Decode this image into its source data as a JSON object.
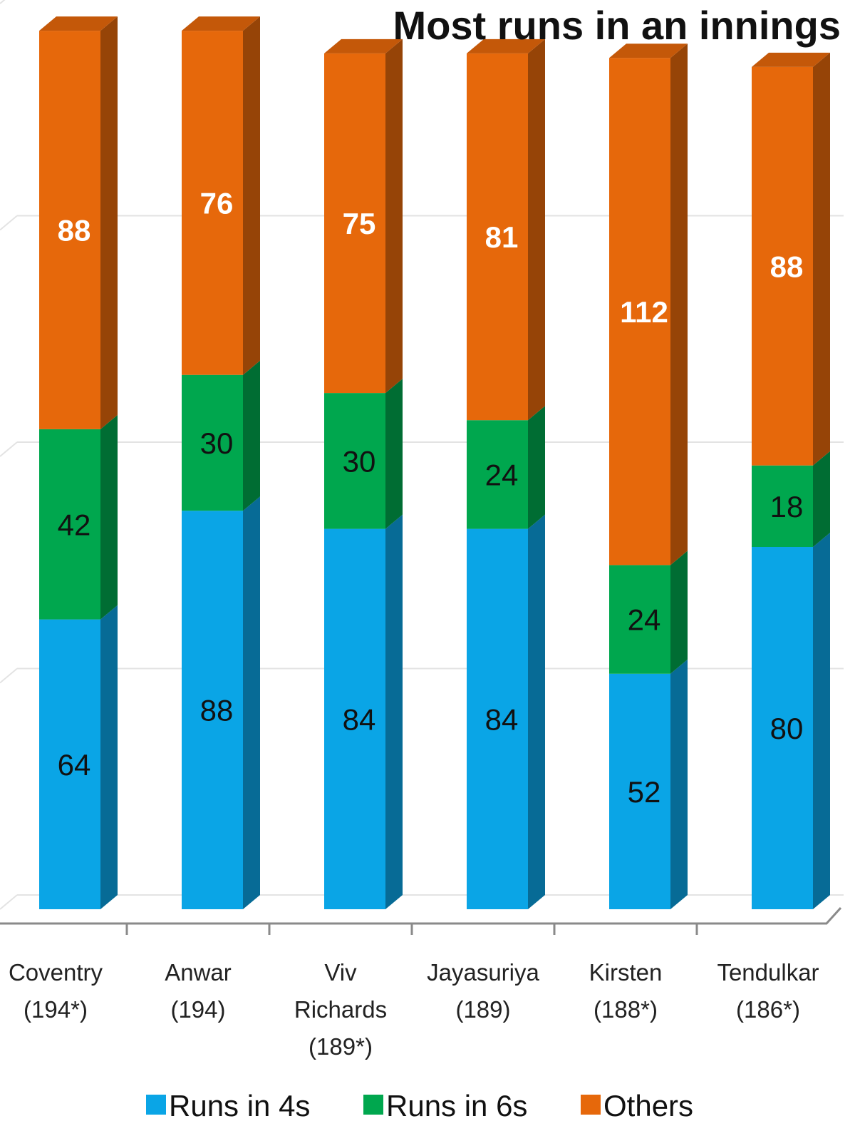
{
  "chart_data": {
    "type": "bar",
    "stacked": true,
    "style": "3d",
    "title": "Most runs in an innings",
    "categories": [
      [
        "Coventry",
        "(194*)"
      ],
      [
        "Anwar",
        "(194)"
      ],
      [
        "Viv",
        "Richards",
        "(189*)"
      ],
      [
        "Jayasuriya",
        "(189)"
      ],
      [
        "Kirsten",
        "(188*)"
      ],
      [
        "Tendulkar",
        "(186*)"
      ]
    ],
    "series": [
      {
        "name": "Runs in 4s",
        "color": "#0aa5e6",
        "values": [
          64,
          88,
          84,
          84,
          52,
          80
        ]
      },
      {
        "name": "Runs in 6s",
        "color": "#00a74e",
        "values": [
          42,
          30,
          30,
          24,
          24,
          18
        ]
      },
      {
        "name": "Others",
        "color": "#e6680b",
        "values": [
          88,
          76,
          75,
          81,
          112,
          88
        ]
      }
    ],
    "ylim": [
      0,
      200
    ],
    "grid": true,
    "legend": "bottom",
    "xlabel": "",
    "ylabel": ""
  }
}
